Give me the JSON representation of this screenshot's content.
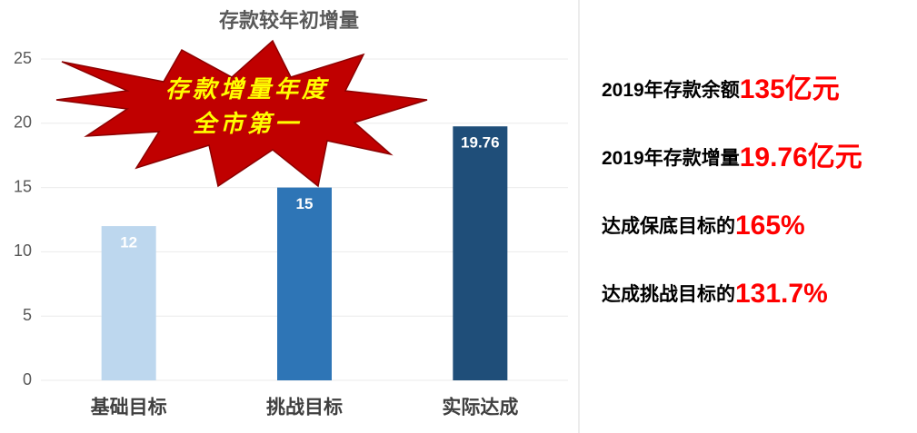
{
  "chart_data": {
    "type": "bar",
    "title": "存款较年初增量",
    "categories": [
      "基础目标",
      "挑战目标",
      "实际达成"
    ],
    "values": [
      12,
      15,
      19.76
    ],
    "colors": [
      "#bdd7ee",
      "#2e75b6",
      "#1f4e79"
    ],
    "ylim": [
      0,
      25
    ],
    "yticks": [
      0,
      5,
      10,
      15,
      20,
      25
    ],
    "grid": true,
    "annotation": [
      "存款增量年度",
      "全市第一"
    ]
  },
  "side_notes": [
    {
      "label": "2019年存款余额",
      "value": "135亿元"
    },
    {
      "label": "2019年存款增量",
      "value": "19.76亿元"
    },
    {
      "label": "达成保底目标的",
      "value": "165%"
    },
    {
      "label": "达成挑战目标的",
      "value": "131.7%"
    }
  ]
}
